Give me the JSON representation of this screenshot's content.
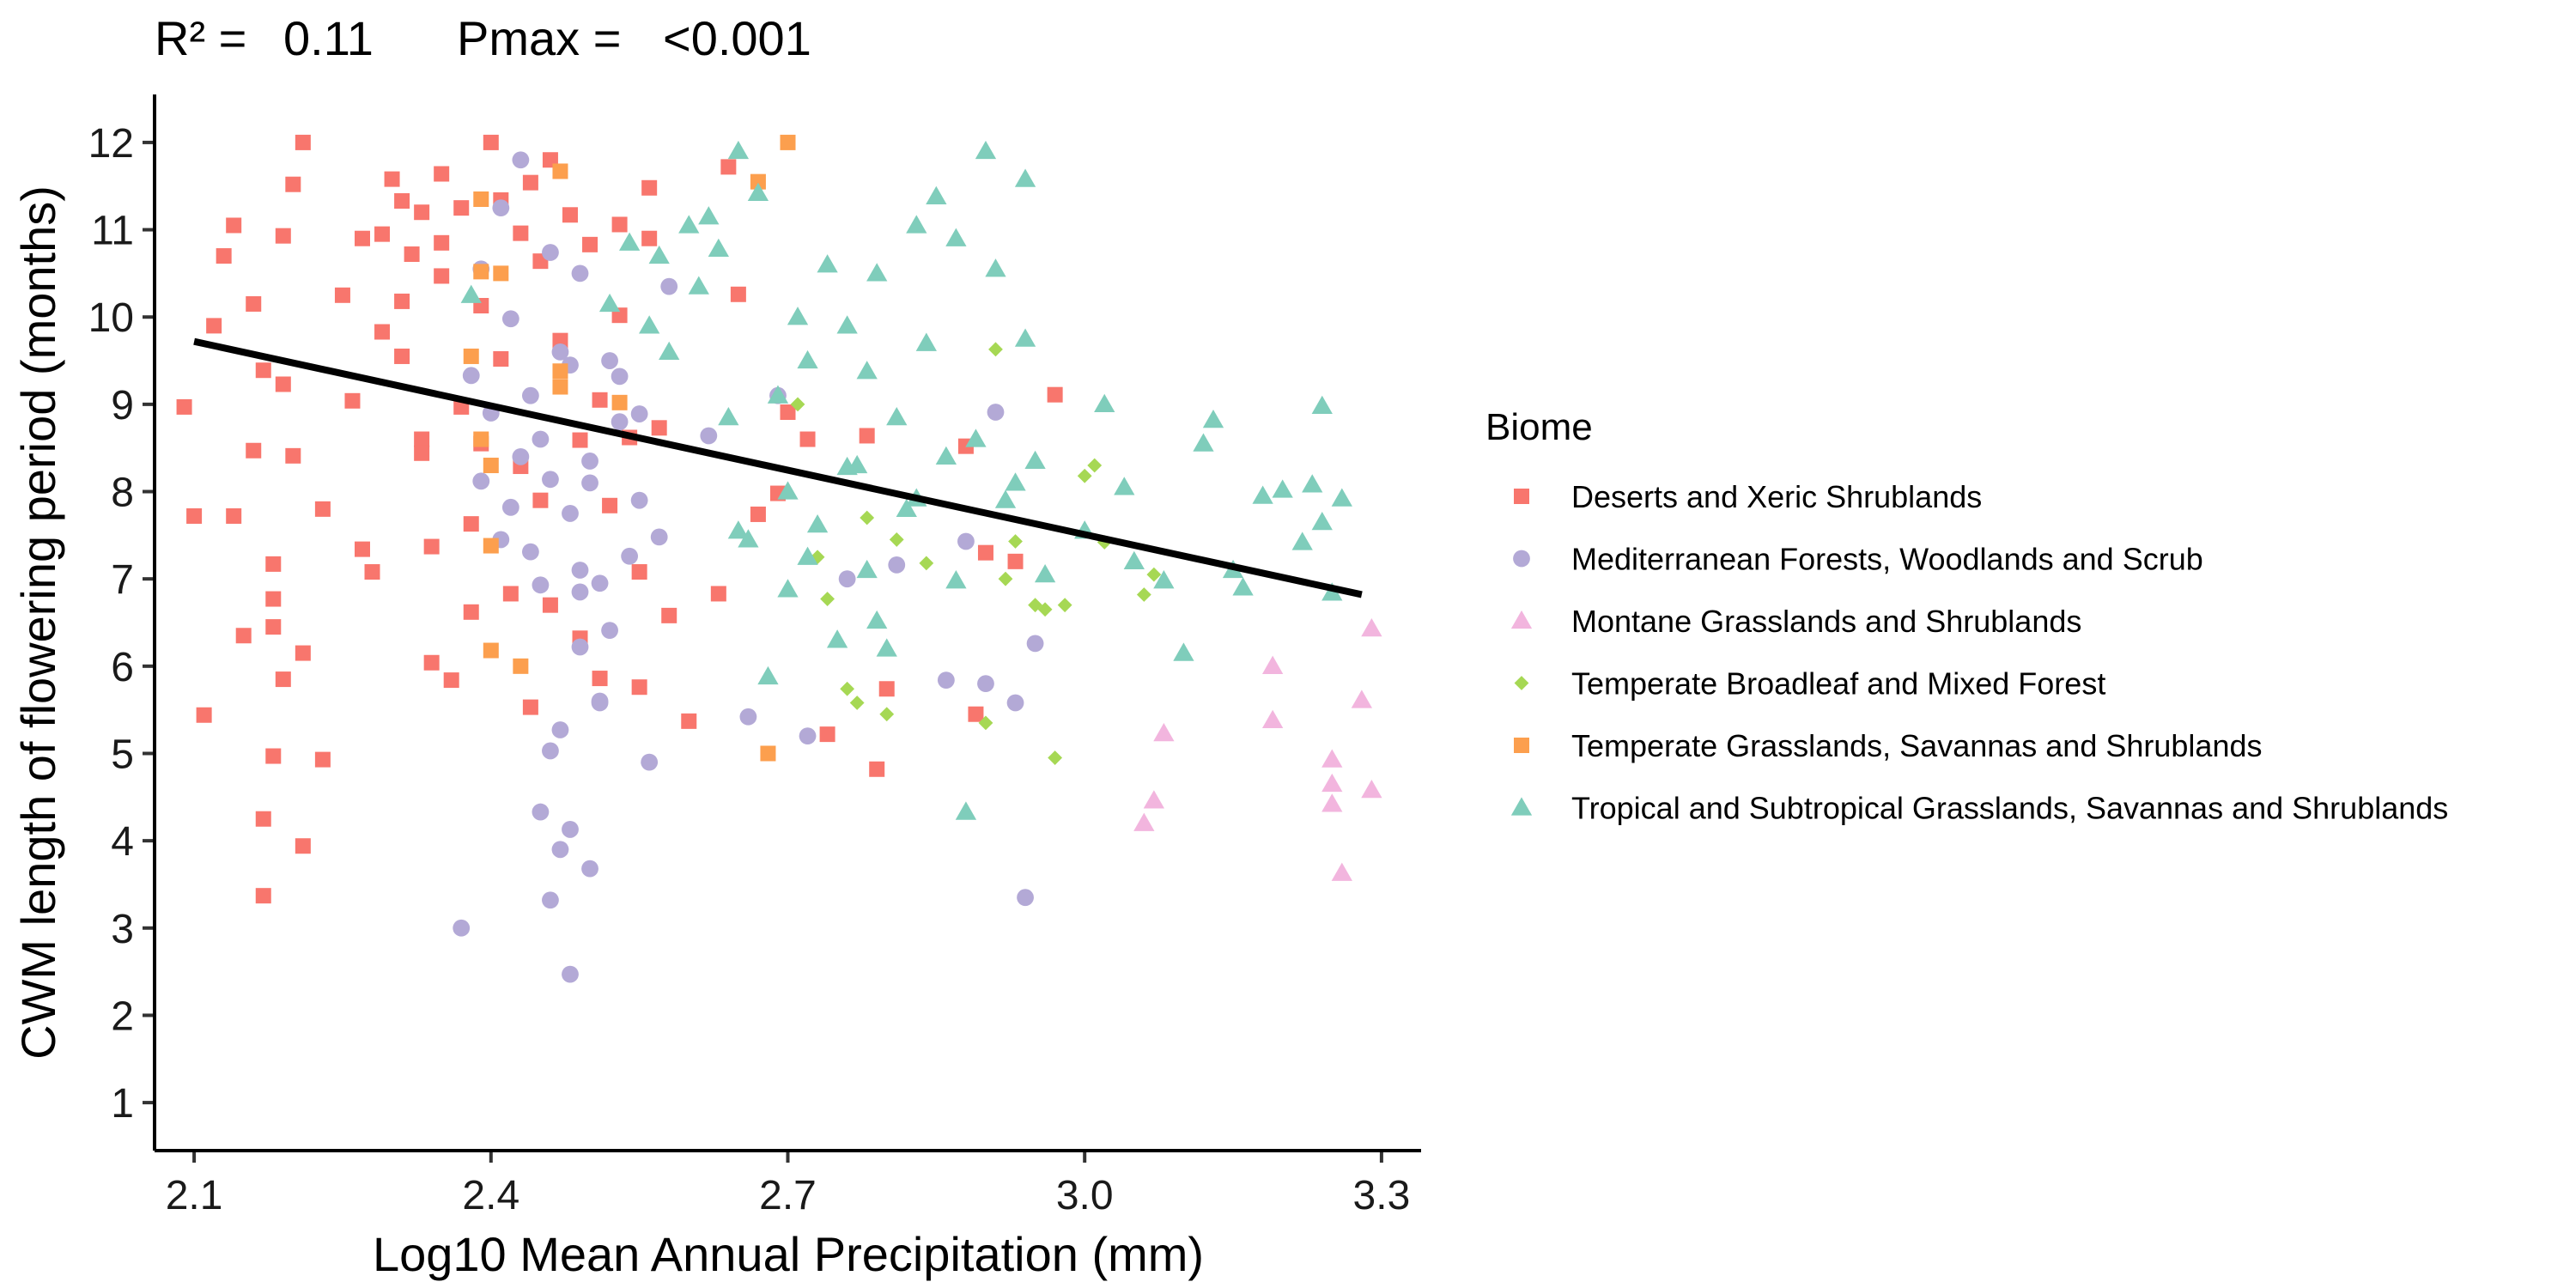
{
  "chart_data": {
    "type": "scatter",
    "stats": {
      "r2_label": "R² =",
      "r2_value": "0.11",
      "pmax_label": "Pmax =",
      "pmax_value": "<0.001"
    },
    "xlabel": "Log10 Mean Annual Precipitation (mm)",
    "ylabel": "CWM length of flowering period (months)",
    "xlim": [
      2.06,
      3.34
    ],
    "ylim": [
      0.45,
      12.55
    ],
    "xticks": [
      "2.1",
      "2.4",
      "2.7",
      "3.0",
      "3.3"
    ],
    "yticks": [
      "1",
      "2",
      "3",
      "4",
      "5",
      "6",
      "7",
      "8",
      "9",
      "10",
      "11",
      "12"
    ],
    "grid": false,
    "legend": {
      "title": "Biome",
      "position": "right"
    },
    "trend_line": {
      "x": [
        2.1,
        3.28
      ],
      "y": [
        9.72,
        6.82
      ],
      "color": "#000000"
    },
    "series": [
      {
        "name": "Deserts and Xeric Shrublands",
        "color": "#F8766D",
        "marker": "square",
        "points": [
          [
            2.09,
            8.97
          ],
          [
            2.1,
            7.72
          ],
          [
            2.11,
            5.44
          ],
          [
            2.12,
            9.9
          ],
          [
            2.13,
            10.7
          ],
          [
            2.14,
            11.05
          ],
          [
            2.14,
            7.72
          ],
          [
            2.15,
            6.35
          ],
          [
            2.16,
            10.15
          ],
          [
            2.16,
            8.47
          ],
          [
            2.17,
            9.39
          ],
          [
            2.17,
            3.37
          ],
          [
            2.17,
            4.25
          ],
          [
            2.18,
            4.97
          ],
          [
            2.18,
            6.77
          ],
          [
            2.18,
            6.45
          ],
          [
            2.18,
            7.17
          ],
          [
            2.19,
            5.85
          ],
          [
            2.19,
            9.23
          ],
          [
            2.19,
            10.93
          ],
          [
            2.2,
            8.41
          ],
          [
            2.2,
            11.52
          ],
          [
            2.21,
            12.0
          ],
          [
            2.21,
            3.94
          ],
          [
            2.21,
            6.15
          ],
          [
            2.23,
            4.93
          ],
          [
            2.23,
            7.8
          ],
          [
            2.25,
            10.25
          ],
          [
            2.26,
            9.04
          ],
          [
            2.27,
            7.34
          ],
          [
            2.28,
            7.08
          ],
          [
            2.29,
            10.95
          ],
          [
            2.29,
            9.83
          ],
          [
            2.3,
            11.58
          ],
          [
            2.31,
            11.33
          ],
          [
            2.31,
            9.55
          ],
          [
            2.32,
            10.72
          ],
          [
            2.33,
            8.6
          ],
          [
            2.33,
            8.44
          ],
          [
            2.34,
            7.37
          ],
          [
            2.34,
            6.04
          ],
          [
            2.35,
            11.64
          ],
          [
            2.35,
            10.47
          ],
          [
            2.36,
            5.84
          ],
          [
            2.37,
            11.25
          ],
          [
            2.37,
            8.97
          ],
          [
            2.38,
            7.63
          ],
          [
            2.38,
            6.62
          ],
          [
            2.39,
            10.13
          ],
          [
            2.4,
            12.0
          ],
          [
            2.41,
            11.34
          ],
          [
            2.41,
            9.52
          ],
          [
            2.42,
            6.83
          ],
          [
            2.43,
            10.96
          ],
          [
            2.43,
            8.29
          ],
          [
            2.44,
            11.54
          ],
          [
            2.44,
            5.53
          ],
          [
            2.45,
            10.64
          ],
          [
            2.45,
            7.9
          ],
          [
            2.46,
            11.8
          ],
          [
            2.46,
            6.7
          ],
          [
            2.47,
            9.73
          ],
          [
            2.48,
            11.17
          ],
          [
            2.49,
            8.59
          ],
          [
            2.49,
            6.32
          ],
          [
            2.5,
            10.83
          ],
          [
            2.51,
            9.05
          ],
          [
            2.51,
            5.86
          ],
          [
            2.52,
            7.84
          ],
          [
            2.53,
            11.06
          ],
          [
            2.53,
            10.02
          ],
          [
            2.54,
            8.62
          ],
          [
            2.55,
            7.08
          ],
          [
            2.55,
            5.76
          ],
          [
            2.56,
            11.48
          ],
          [
            2.56,
            10.9
          ],
          [
            2.57,
            8.73
          ],
          [
            2.58,
            6.58
          ],
          [
            2.6,
            5.37
          ],
          [
            2.63,
            6.83
          ],
          [
            2.64,
            11.72
          ],
          [
            2.65,
            10.26
          ],
          [
            2.67,
            7.74
          ],
          [
            2.69,
            7.98
          ],
          [
            2.7,
            8.91
          ],
          [
            2.72,
            8.6
          ],
          [
            2.74,
            5.22
          ],
          [
            2.78,
            8.64
          ],
          [
            2.79,
            4.82
          ],
          [
            2.8,
            5.74
          ],
          [
            2.88,
            8.52
          ],
          [
            2.9,
            7.3
          ],
          [
            2.93,
            7.2
          ],
          [
            2.97,
            9.11
          ],
          [
            2.89,
            5.45
          ],
          [
            2.35,
            10.85
          ],
          [
            2.33,
            11.2
          ],
          [
            2.39,
            8.55
          ],
          [
            2.27,
            10.9
          ],
          [
            2.31,
            10.18
          ]
        ]
      },
      {
        "name": "Mediterranean Forests, Woodlands and Scrub",
        "color": "#B3A9D6",
        "marker": "circle",
        "points": [
          [
            2.37,
            3.0
          ],
          [
            2.38,
            9.33
          ],
          [
            2.39,
            10.55
          ],
          [
            2.4,
            8.9
          ],
          [
            2.41,
            11.25
          ],
          [
            2.42,
            9.98
          ],
          [
            2.43,
            8.4
          ],
          [
            2.44,
            7.31
          ],
          [
            2.45,
            6.93
          ],
          [
            2.46,
            10.74
          ],
          [
            2.46,
            8.14
          ],
          [
            2.47,
            9.6
          ],
          [
            2.48,
            7.75
          ],
          [
            2.48,
            4.13
          ],
          [
            2.49,
            6.85
          ],
          [
            2.49,
            10.5
          ],
          [
            2.5,
            8.35
          ],
          [
            2.51,
            5.58
          ],
          [
            2.52,
            6.41
          ],
          [
            2.53,
            8.8
          ],
          [
            2.54,
            7.26
          ],
          [
            2.55,
            8.89
          ],
          [
            2.56,
            4.9
          ],
          [
            2.57,
            7.48
          ],
          [
            2.58,
            10.35
          ],
          [
            2.43,
            11.8
          ],
          [
            2.45,
            4.33
          ],
          [
            2.46,
            3.32
          ],
          [
            2.48,
            2.47
          ],
          [
            2.47,
            3.9
          ],
          [
            2.5,
            3.68
          ],
          [
            2.46,
            5.03
          ],
          [
            2.49,
            6.22
          ],
          [
            2.51,
            5.6
          ],
          [
            2.47,
            5.27
          ],
          [
            2.44,
            9.1
          ],
          [
            2.42,
            7.82
          ],
          [
            2.52,
            9.5
          ],
          [
            2.55,
            7.9
          ],
          [
            2.39,
            8.12
          ],
          [
            2.62,
            8.64
          ],
          [
            2.66,
            5.42
          ],
          [
            2.69,
            9.1
          ],
          [
            2.72,
            5.2
          ],
          [
            2.76,
            7.0
          ],
          [
            2.81,
            7.16
          ],
          [
            2.86,
            5.84
          ],
          [
            2.9,
            5.8
          ],
          [
            2.93,
            5.58
          ],
          [
            2.94,
            3.35
          ],
          [
            2.88,
            7.43
          ],
          [
            2.91,
            8.91
          ],
          [
            2.95,
            6.26
          ],
          [
            2.49,
            7.1
          ],
          [
            2.51,
            6.95
          ],
          [
            2.45,
            8.6
          ],
          [
            2.5,
            8.1
          ],
          [
            2.41,
            7.45
          ],
          [
            2.53,
            9.32
          ],
          [
            2.48,
            9.45
          ]
        ]
      },
      {
        "name": "Montane Grasslands and Shrublands",
        "color": "#F2B5DE",
        "marker": "triangle",
        "points": [
          [
            3.06,
            4.2
          ],
          [
            3.07,
            4.46
          ],
          [
            3.08,
            5.23
          ],
          [
            3.19,
            5.38
          ],
          [
            3.19,
            6.0
          ],
          [
            3.25,
            4.93
          ],
          [
            3.25,
            4.65
          ],
          [
            3.25,
            4.42
          ],
          [
            3.26,
            3.63
          ],
          [
            3.28,
            5.61
          ],
          [
            3.29,
            6.43
          ],
          [
            3.29,
            4.58
          ]
        ]
      },
      {
        "name": "Temperate Broadleaf and Mixed Forest",
        "color": "#A6D854",
        "marker": "diamond",
        "points": [
          [
            2.71,
            9.0
          ],
          [
            2.73,
            7.25
          ],
          [
            2.74,
            6.77
          ],
          [
            2.76,
            5.74
          ],
          [
            2.77,
            5.58
          ],
          [
            2.78,
            7.7
          ],
          [
            2.8,
            5.45
          ],
          [
            2.81,
            7.45
          ],
          [
            2.84,
            7.18
          ],
          [
            2.9,
            5.35
          ],
          [
            2.91,
            9.63
          ],
          [
            2.93,
            7.43
          ],
          [
            2.95,
            6.7
          ],
          [
            2.97,
            4.95
          ],
          [
            2.98,
            6.7
          ],
          [
            3.0,
            8.18
          ],
          [
            3.01,
            8.3
          ],
          [
            3.06,
            6.82
          ],
          [
            3.07,
            7.05
          ],
          [
            3.02,
            7.42
          ],
          [
            2.96,
            6.65
          ],
          [
            2.92,
            7.0
          ]
        ]
      },
      {
        "name": "Temperate Grasslands, Savannas and Shrublands",
        "color": "#FC9F4E",
        "marker": "square",
        "points": [
          [
            2.38,
            9.55
          ],
          [
            2.39,
            10.52
          ],
          [
            2.39,
            11.35
          ],
          [
            2.4,
            8.3
          ],
          [
            2.4,
            7.38
          ],
          [
            2.4,
            6.18
          ],
          [
            2.41,
            10.5
          ],
          [
            2.43,
            6.0
          ],
          [
            2.47,
            11.67
          ],
          [
            2.47,
            9.38
          ],
          [
            2.47,
            9.2
          ],
          [
            2.53,
            9.02
          ],
          [
            2.67,
            11.55
          ],
          [
            2.68,
            5.0
          ],
          [
            2.7,
            12.0
          ],
          [
            2.39,
            8.6
          ]
        ]
      },
      {
        "name": "Tropical and Subtropical Grasslands, Savannas and Shrublands",
        "color": "#7FCDBB",
        "marker": "triangle",
        "points": [
          [
            2.38,
            10.25
          ],
          [
            2.52,
            10.15
          ],
          [
            2.54,
            10.85
          ],
          [
            2.56,
            9.9
          ],
          [
            2.57,
            10.7
          ],
          [
            2.58,
            9.6
          ],
          [
            2.6,
            11.05
          ],
          [
            2.61,
            10.35
          ],
          [
            2.62,
            11.15
          ],
          [
            2.63,
            10.78
          ],
          [
            2.64,
            8.85
          ],
          [
            2.65,
            11.9
          ],
          [
            2.66,
            7.45
          ],
          [
            2.67,
            11.42
          ],
          [
            2.68,
            5.88
          ],
          [
            2.69,
            9.1
          ],
          [
            2.7,
            8.0
          ],
          [
            2.71,
            10.0
          ],
          [
            2.72,
            9.5
          ],
          [
            2.73,
            7.62
          ],
          [
            2.74,
            10.6
          ],
          [
            2.75,
            6.3
          ],
          [
            2.76,
            9.9
          ],
          [
            2.77,
            8.3
          ],
          [
            2.78,
            7.1
          ],
          [
            2.79,
            10.5
          ],
          [
            2.8,
            6.2
          ],
          [
            2.81,
            8.85
          ],
          [
            2.82,
            7.8
          ],
          [
            2.83,
            11.05
          ],
          [
            2.84,
            9.7
          ],
          [
            2.85,
            11.38
          ],
          [
            2.86,
            8.4
          ],
          [
            2.87,
            10.9
          ],
          [
            2.88,
            4.33
          ],
          [
            2.89,
            8.6
          ],
          [
            2.9,
            11.9
          ],
          [
            2.91,
            10.55
          ],
          [
            2.92,
            7.9
          ],
          [
            2.93,
            8.1
          ],
          [
            2.94,
            11.58
          ],
          [
            2.94,
            9.75
          ],
          [
            2.95,
            8.35
          ],
          [
            2.96,
            7.05
          ],
          [
            3.0,
            7.55
          ],
          [
            3.02,
            9.0
          ],
          [
            3.04,
            8.05
          ],
          [
            3.05,
            7.2
          ],
          [
            3.08,
            6.98
          ],
          [
            3.1,
            6.15
          ],
          [
            3.12,
            8.55
          ],
          [
            3.13,
            8.82
          ],
          [
            3.15,
            7.1
          ],
          [
            3.16,
            6.9
          ],
          [
            3.18,
            7.95
          ],
          [
            3.2,
            8.02
          ],
          [
            3.22,
            7.42
          ],
          [
            3.24,
            8.98
          ],
          [
            3.25,
            6.84
          ],
          [
            3.26,
            7.92
          ],
          [
            3.23,
            8.08
          ],
          [
            3.24,
            7.65
          ],
          [
            2.72,
            7.25
          ],
          [
            2.76,
            8.28
          ],
          [
            2.83,
            7.92
          ],
          [
            2.87,
            6.98
          ],
          [
            2.79,
            6.52
          ],
          [
            2.7,
            6.88
          ],
          [
            2.65,
            7.55
          ],
          [
            2.78,
            9.38
          ]
        ]
      }
    ]
  }
}
